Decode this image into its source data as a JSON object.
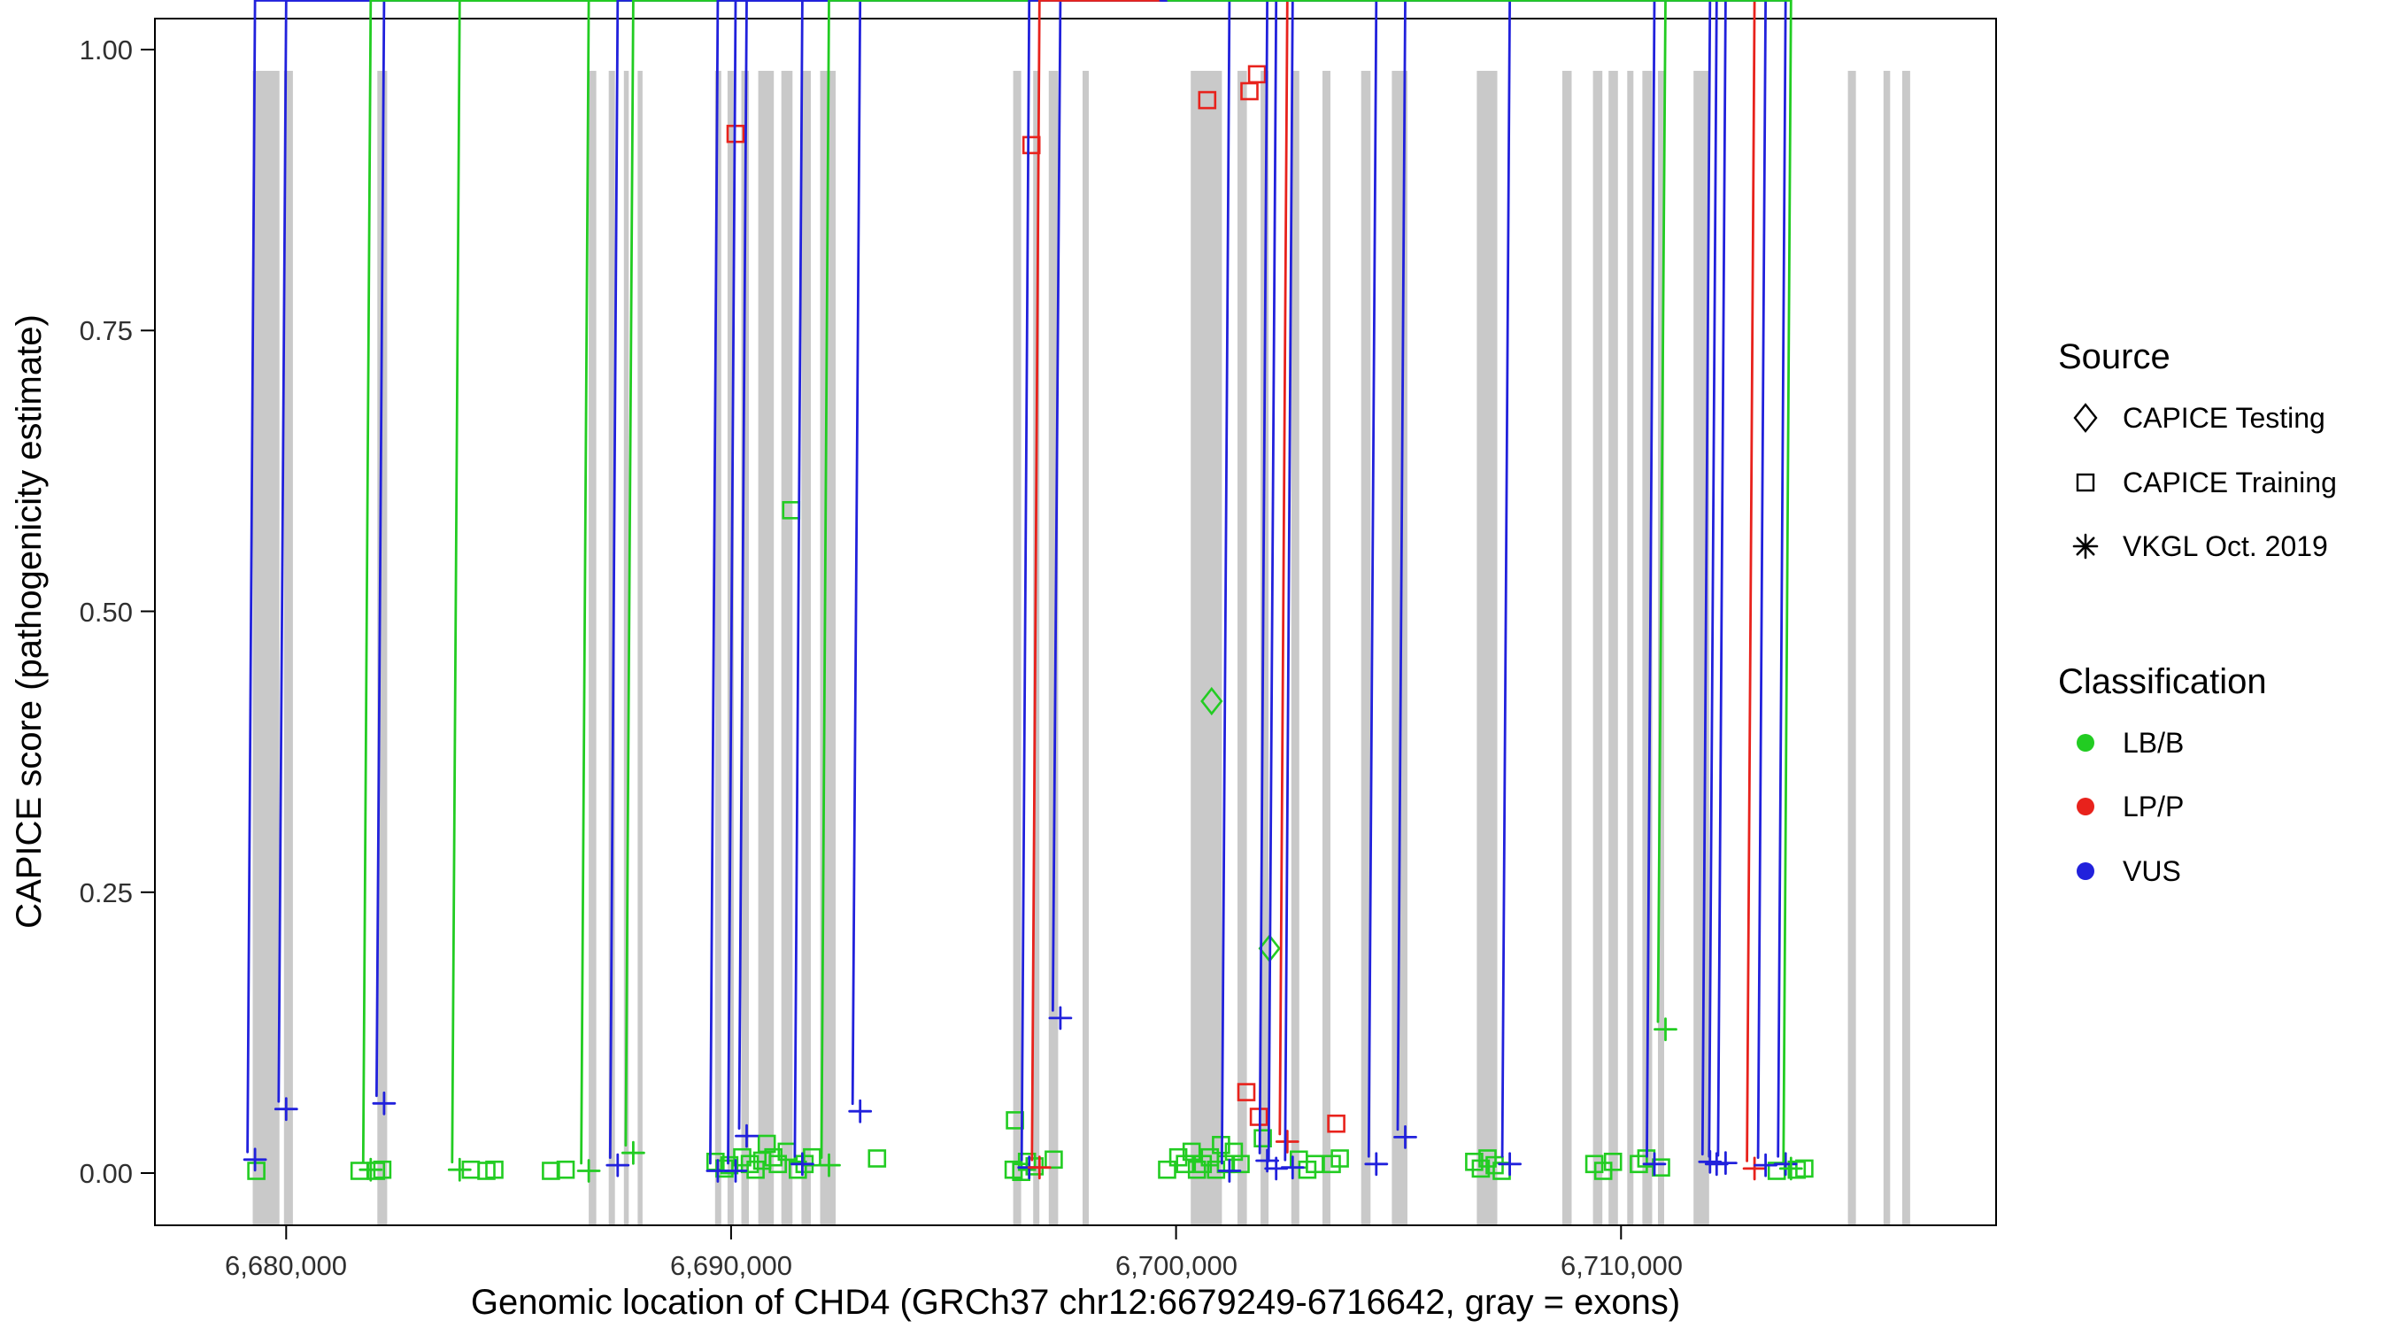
{
  "figure": {
    "legend": {
      "source": {
        "title": "Source",
        "items": [
          {
            "label": "CAPICE Testing",
            "shape": "diamond"
          },
          {
            "label": "CAPICE Training",
            "shape": "square"
          },
          {
            "label": "VKGL Oct. 2019",
            "shape": "asterisk"
          }
        ]
      },
      "classification": {
        "title": "Classification",
        "items": [
          {
            "label": "LB/B",
            "color_key": "lbb"
          },
          {
            "label": "LP/P",
            "color_key": "lpp"
          },
          {
            "label": "VUS",
            "color_key": "vus"
          }
        ]
      }
    }
  },
  "chart_data": {
    "type": "scatter",
    "title": "",
    "xlabel": "Genomic location of CHD4 (GRCh37 chr12:6679249-6716642, gray = exons)",
    "ylabel": "CAPICE score (pathogenicity estimate)",
    "gene": "CHD4",
    "gene_region": "chr12:6679249-6716642",
    "genome_build": "GRCh37",
    "x_ticks": [
      6680000,
      6690000,
      6700000,
      6710000
    ],
    "x_tick_labels": [
      "6,680,000",
      "6,690,000",
      "6,700,000",
      "6,710,000"
    ],
    "y_ticks": [
      0,
      0.25,
      0.5,
      0.75,
      1
    ],
    "y_tick_labels": [
      "0.00",
      "0.25",
      "0.50",
      "0.75",
      "1.00"
    ],
    "x_view": [
      6677050,
      6718430
    ],
    "ylim": [
      0,
      1
    ],
    "grid": "off",
    "legend_position": "right",
    "colors": {
      "lbb": "#22CC22",
      "lpp": "#E8221C",
      "vus": "#2121DC",
      "exon": "#C9C9C9"
    },
    "exons": [
      [
        6679249,
        6679850
      ],
      [
        6679950,
        6680150
      ],
      [
        6682050,
        6682270
      ],
      [
        6686800,
        6686970
      ],
      [
        6687250,
        6687390
      ],
      [
        6687590,
        6687700
      ],
      [
        6687900,
        6688010
      ],
      [
        6689640,
        6689780
      ],
      [
        6689920,
        6690060
      ],
      [
        6690230,
        6690400
      ],
      [
        6690610,
        6690960
      ],
      [
        6691130,
        6691380
      ],
      [
        6691580,
        6691790
      ],
      [
        6692000,
        6692350
      ],
      [
        6696340,
        6696520
      ],
      [
        6696790,
        6696930
      ],
      [
        6697140,
        6697350
      ],
      [
        6697900,
        6698040
      ],
      [
        6700330,
        6701030
      ],
      [
        6701380,
        6701590
      ],
      [
        6701900,
        6702080
      ],
      [
        6702590,
        6702770
      ],
      [
        6703290,
        6703470
      ],
      [
        6704160,
        6704370
      ],
      [
        6704850,
        6705200
      ],
      [
        6706760,
        6707220
      ],
      [
        6708680,
        6708890
      ],
      [
        6709370,
        6709580
      ],
      [
        6709720,
        6709930
      ],
      [
        6710140,
        6710280
      ],
      [
        6710480,
        6710700
      ],
      [
        6710830,
        6710970
      ],
      [
        6711630,
        6711980
      ],
      [
        6715100,
        6715280
      ],
      [
        6715900,
        6716050
      ],
      [
        6716320,
        6716500
      ]
    ],
    "points": [
      {
        "pos": 6690100,
        "score": 0.925,
        "source": "CAPICE Training",
        "class": "LP/P"
      },
      {
        "pos": 6696750,
        "score": 0.915,
        "source": "CAPICE Training",
        "class": "LP/P"
      },
      {
        "pos": 6700700,
        "score": 0.955,
        "source": "CAPICE Training",
        "class": "LP/P"
      },
      {
        "pos": 6701650,
        "score": 0.963,
        "source": "CAPICE Training",
        "class": "LP/P"
      },
      {
        "pos": 6701820,
        "score": 0.978,
        "source": "CAPICE Training",
        "class": "LP/P"
      },
      {
        "pos": 6691350,
        "score": 0.59,
        "source": "CAPICE Training",
        "class": "LB/B"
      },
      {
        "pos": 6700800,
        "score": 0.42,
        "source": "CAPICE Testing",
        "class": "LB/B"
      },
      {
        "pos": 6702100,
        "score": 0.2,
        "source": "CAPICE Testing",
        "class": "LB/B"
      },
      {
        "pos": 6697400,
        "score": 0.138,
        "source": "VKGL Oct. 2019",
        "class": "VUS"
      },
      {
        "pos": 6711000,
        "score": 0.128,
        "source": "VKGL Oct. 2019",
        "class": "LB/B"
      },
      {
        "pos": 6680000,
        "score": 0.057,
        "source": "VKGL Oct. 2019",
        "class": "VUS"
      },
      {
        "pos": 6682200,
        "score": 0.062,
        "source": "VKGL Oct. 2019",
        "class": "VUS"
      },
      {
        "pos": 6692900,
        "score": 0.055,
        "source": "VKGL Oct. 2019",
        "class": "VUS"
      },
      {
        "pos": 6705150,
        "score": 0.032,
        "source": "VKGL Oct. 2019",
        "class": "VUS"
      },
      {
        "pos": 6690350,
        "score": 0.033,
        "source": "VKGL Oct. 2019",
        "class": "VUS"
      },
      {
        "pos": 6696380,
        "score": 0.047,
        "source": "CAPICE Training",
        "class": "LB/B"
      },
      {
        "pos": 6701580,
        "score": 0.072,
        "source": "CAPICE Training",
        "class": "LP/P"
      },
      {
        "pos": 6701860,
        "score": 0.05,
        "source": "CAPICE Training",
        "class": "LP/P"
      },
      {
        "pos": 6703600,
        "score": 0.044,
        "source": "CAPICE Training",
        "class": "LP/P"
      },
      {
        "pos": 6702500,
        "score": 0.028,
        "source": "VKGL Oct. 2019",
        "class": "LP/P"
      },
      {
        "pos": 6701950,
        "score": 0.031,
        "source": "CAPICE Training",
        "class": "LB/B"
      },
      {
        "pos": 6690800,
        "score": 0.026,
        "source": "CAPICE Training",
        "class": "LB/B"
      },
      {
        "pos": 6679300,
        "score": 0.012,
        "source": "VKGL Oct. 2019",
        "class": "VUS"
      },
      {
        "pos": 6679330,
        "score": 0.002,
        "source": "CAPICE Training",
        "class": "LB/B"
      },
      {
        "pos": 6681650,
        "score": 0.002,
        "source": "CAPICE Training",
        "class": "LB/B"
      },
      {
        "pos": 6681900,
        "score": 0.003,
        "source": "VKGL Oct. 2019",
        "class": "LB/B"
      },
      {
        "pos": 6682020,
        "score": 0.002,
        "source": "CAPICE Training",
        "class": "LB/B"
      },
      {
        "pos": 6682160,
        "score": 0.003,
        "source": "CAPICE Training",
        "class": "LB/B"
      },
      {
        "pos": 6683900,
        "score": 0.003,
        "source": "VKGL Oct. 2019",
        "class": "LB/B"
      },
      {
        "pos": 6684150,
        "score": 0.003,
        "source": "CAPICE Training",
        "class": "LB/B"
      },
      {
        "pos": 6684500,
        "score": 0.002,
        "source": "CAPICE Training",
        "class": "LB/B"
      },
      {
        "pos": 6684680,
        "score": 0.003,
        "source": "CAPICE Training",
        "class": "LB/B"
      },
      {
        "pos": 6685950,
        "score": 0.002,
        "source": "CAPICE Training",
        "class": "LB/B"
      },
      {
        "pos": 6686280,
        "score": 0.003,
        "source": "CAPICE Training",
        "class": "LB/B"
      },
      {
        "pos": 6686800,
        "score": 0.002,
        "source": "VKGL Oct. 2019",
        "class": "LB/B"
      },
      {
        "pos": 6687450,
        "score": 0.007,
        "source": "VKGL Oct. 2019",
        "class": "VUS"
      },
      {
        "pos": 6687800,
        "score": 0.018,
        "source": "VKGL Oct. 2019",
        "class": "LB/B"
      },
      {
        "pos": 6689650,
        "score": 0.01,
        "source": "CAPICE Training",
        "class": "LB/B"
      },
      {
        "pos": 6689700,
        "score": 0.002,
        "source": "VKGL Oct. 2019",
        "class": "VUS"
      },
      {
        "pos": 6689850,
        "score": 0.004,
        "source": "CAPICE Training",
        "class": "LB/B"
      },
      {
        "pos": 6689960,
        "score": 0.007,
        "source": "CAPICE Training",
        "class": "LB/B"
      },
      {
        "pos": 6690100,
        "score": 0.002,
        "source": "VKGL Oct. 2019",
        "class": "VUS"
      },
      {
        "pos": 6690250,
        "score": 0.014,
        "source": "CAPICE Training",
        "class": "LB/B"
      },
      {
        "pos": 6690420,
        "score": 0.008,
        "source": "CAPICE Training",
        "class": "LB/B"
      },
      {
        "pos": 6690550,
        "score": 0.003,
        "source": "CAPICE Training",
        "class": "LB/B"
      },
      {
        "pos": 6690700,
        "score": 0.011,
        "source": "CAPICE Training",
        "class": "LB/B"
      },
      {
        "pos": 6690950,
        "score": 0.014,
        "source": "CAPICE Training",
        "class": "LB/B"
      },
      {
        "pos": 6691050,
        "score": 0.008,
        "source": "CAPICE Training",
        "class": "LB/B"
      },
      {
        "pos": 6691250,
        "score": 0.019,
        "source": "CAPICE Training",
        "class": "LB/B"
      },
      {
        "pos": 6691500,
        "score": 0.003,
        "source": "CAPICE Training",
        "class": "LB/B"
      },
      {
        "pos": 6691650,
        "score": 0.008,
        "source": "CAPICE Training",
        "class": "LB/B"
      },
      {
        "pos": 6691820,
        "score": 0.014,
        "source": "CAPICE Training",
        "class": "LB/B"
      },
      {
        "pos": 6691600,
        "score": 0.008,
        "source": "VKGL Oct. 2019",
        "class": "VUS"
      },
      {
        "pos": 6692200,
        "score": 0.007,
        "source": "VKGL Oct. 2019",
        "class": "LB/B"
      },
      {
        "pos": 6693280,
        "score": 0.013,
        "source": "CAPICE Training",
        "class": "LB/B"
      },
      {
        "pos": 6696350,
        "score": 0.003,
        "source": "CAPICE Training",
        "class": "LB/B"
      },
      {
        "pos": 6696520,
        "score": 0.001,
        "source": "CAPICE Training",
        "class": "LB/B"
      },
      {
        "pos": 6696650,
        "score": 0.01,
        "source": "CAPICE Training",
        "class": "LB/B"
      },
      {
        "pos": 6696820,
        "score": 0.006,
        "source": "CAPICE Training",
        "class": "LB/B"
      },
      {
        "pos": 6696700,
        "score": 0.005,
        "source": "VKGL Oct. 2019",
        "class": "VUS"
      },
      {
        "pos": 6696930,
        "score": 0.005,
        "source": "VKGL Oct. 2019",
        "class": "LP/P"
      },
      {
        "pos": 6697250,
        "score": 0.012,
        "source": "CAPICE Training",
        "class": "LB/B"
      },
      {
        "pos": 6699800,
        "score": 0.003,
        "source": "CAPICE Training",
        "class": "LB/B"
      },
      {
        "pos": 6700050,
        "score": 0.014,
        "source": "CAPICE Training",
        "class": "LB/B"
      },
      {
        "pos": 6700200,
        "score": 0.008,
        "source": "CAPICE Training",
        "class": "LB/B"
      },
      {
        "pos": 6700350,
        "score": 0.019,
        "source": "CAPICE Training",
        "class": "LB/B"
      },
      {
        "pos": 6700470,
        "score": 0.003,
        "source": "CAPICE Training",
        "class": "LB/B"
      },
      {
        "pos": 6700600,
        "score": 0.008,
        "source": "CAPICE Training",
        "class": "LB/B"
      },
      {
        "pos": 6700760,
        "score": 0.014,
        "source": "CAPICE Training",
        "class": "LB/B"
      },
      {
        "pos": 6700900,
        "score": 0.003,
        "source": "CAPICE Training",
        "class": "LB/B"
      },
      {
        "pos": 6701010,
        "score": 0.025,
        "source": "CAPICE Training",
        "class": "LB/B"
      },
      {
        "pos": 6701120,
        "score": 0.008,
        "source": "CAPICE Training",
        "class": "LB/B"
      },
      {
        "pos": 6701300,
        "score": 0.019,
        "source": "CAPICE Training",
        "class": "LB/B"
      },
      {
        "pos": 6701450,
        "score": 0.008,
        "source": "CAPICE Training",
        "class": "LB/B"
      },
      {
        "pos": 6701200,
        "score": 0.002,
        "source": "VKGL Oct. 2019",
        "class": "VUS"
      },
      {
        "pos": 6702050,
        "score": 0.011,
        "source": "VKGL Oct. 2019",
        "class": "VUS"
      },
      {
        "pos": 6702250,
        "score": 0.004,
        "source": "VKGL Oct. 2019",
        "class": "VUS"
      },
      {
        "pos": 6702620,
        "score": 0.005,
        "source": "VKGL Oct. 2019",
        "class": "VUS"
      },
      {
        "pos": 6702760,
        "score": 0.012,
        "source": "CAPICE Training",
        "class": "LB/B"
      },
      {
        "pos": 6702950,
        "score": 0.003,
        "source": "CAPICE Training",
        "class": "LB/B"
      },
      {
        "pos": 6703120,
        "score": 0.008,
        "source": "CAPICE Training",
        "class": "LB/B"
      },
      {
        "pos": 6703500,
        "score": 0.008,
        "source": "CAPICE Training",
        "class": "LB/B"
      },
      {
        "pos": 6703680,
        "score": 0.013,
        "source": "CAPICE Training",
        "class": "LB/B"
      },
      {
        "pos": 6704500,
        "score": 0.008,
        "source": "VKGL Oct. 2019",
        "class": "VUS"
      },
      {
        "pos": 6706700,
        "score": 0.01,
        "source": "CAPICE Training",
        "class": "LB/B"
      },
      {
        "pos": 6706850,
        "score": 0.004,
        "source": "CAPICE Training",
        "class": "LB/B"
      },
      {
        "pos": 6707000,
        "score": 0.013,
        "source": "CAPICE Training",
        "class": "LB/B"
      },
      {
        "pos": 6707160,
        "score": 0.007,
        "source": "CAPICE Training",
        "class": "LB/B"
      },
      {
        "pos": 6707320,
        "score": 0.002,
        "source": "CAPICE Training",
        "class": "LB/B"
      },
      {
        "pos": 6707500,
        "score": 0.008,
        "source": "VKGL Oct. 2019",
        "class": "VUS"
      },
      {
        "pos": 6709400,
        "score": 0.008,
        "source": "CAPICE Training",
        "class": "LB/B"
      },
      {
        "pos": 6709600,
        "score": 0.002,
        "source": "CAPICE Training",
        "class": "LB/B"
      },
      {
        "pos": 6709820,
        "score": 0.01,
        "source": "CAPICE Training",
        "class": "LB/B"
      },
      {
        "pos": 6710400,
        "score": 0.008,
        "source": "CAPICE Training",
        "class": "LB/B"
      },
      {
        "pos": 6710570,
        "score": 0.013,
        "source": "CAPICE Training",
        "class": "LB/B"
      },
      {
        "pos": 6710750,
        "score": 0.008,
        "source": "VKGL Oct. 2019",
        "class": "VUS"
      },
      {
        "pos": 6710900,
        "score": 0.005,
        "source": "CAPICE Training",
        "class": "LB/B"
      },
      {
        "pos": 6712000,
        "score": 0.01,
        "source": "VKGL Oct. 2019",
        "class": "VUS"
      },
      {
        "pos": 6712150,
        "score": 0.008,
        "source": "VKGL Oct. 2019",
        "class": "VUS"
      },
      {
        "pos": 6712350,
        "score": 0.009,
        "source": "VKGL Oct. 2019",
        "class": "VUS"
      },
      {
        "pos": 6713000,
        "score": 0.004,
        "source": "VKGL Oct. 2019",
        "class": "LP/P"
      },
      {
        "pos": 6713250,
        "score": 0.007,
        "source": "VKGL Oct. 2019",
        "class": "VUS"
      },
      {
        "pos": 6713500,
        "score": 0.002,
        "source": "CAPICE Training",
        "class": "LB/B"
      },
      {
        "pos": 6713700,
        "score": 0.008,
        "source": "VKGL Oct. 2019",
        "class": "VUS"
      },
      {
        "pos": 6713820,
        "score": 0.004,
        "source": "VKGL Oct. 2019",
        "class": "LB/B"
      },
      {
        "pos": 6713950,
        "score": 0.003,
        "source": "CAPICE Training",
        "class": "LB/B"
      },
      {
        "pos": 6714120,
        "score": 0.004,
        "source": "CAPICE Training",
        "class": "LB/B"
      }
    ]
  }
}
